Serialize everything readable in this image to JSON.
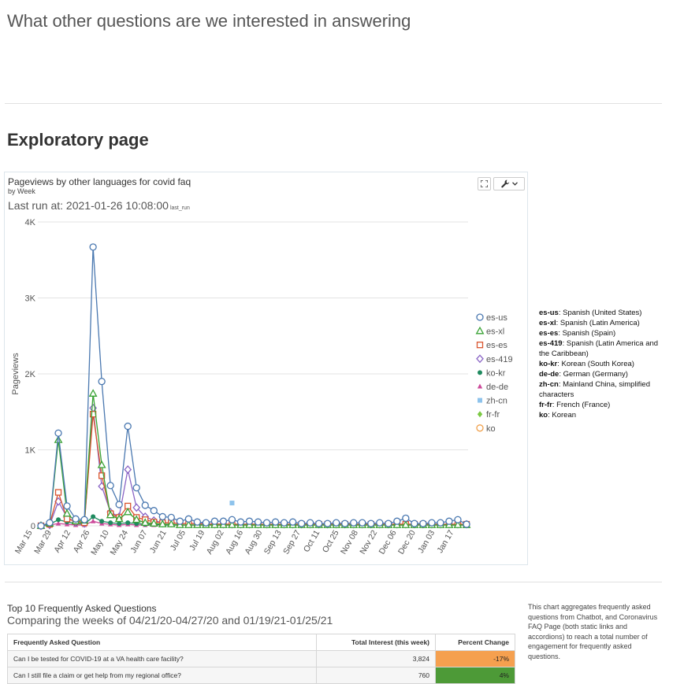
{
  "headings": {
    "questions": "What other questions are we interested in answering",
    "exploratory": "Exploratory page"
  },
  "chart_card": {
    "title": "Pageviews by other languages for covid faq",
    "subtitle": "by Week",
    "last_run_label": "Last run at: 2021-01-26 10:08:00",
    "last_run_tag": "last_run",
    "expand_icon": "expand-icon",
    "tools_icon": "wrench-icon"
  },
  "chart_data": {
    "type": "line",
    "ylabel": "Pageviews",
    "xlabel": "",
    "ylim": [
      0,
      4000
    ],
    "y_ticks": [
      0,
      1000,
      2000,
      3000,
      4000
    ],
    "y_tick_labels": [
      "0",
      "1K",
      "2K",
      "3K",
      "4K"
    ],
    "grid": true,
    "legend_position": "right",
    "x_tick_labels": [
      "Mar 15",
      "Mar 29",
      "Apr 12",
      "Apr 26",
      "May 10",
      "May 24",
      "Jun 07",
      "Jun 21",
      "Jul 05",
      "Jul 19",
      "Aug 02",
      "Aug 16",
      "Aug 30",
      "Sep 13",
      "Sep 27",
      "Oct 11",
      "Oct 25",
      "Nov 08",
      "Nov 22",
      "Dec 06",
      "Dec 20",
      "Jan 03",
      "Jan 17"
    ],
    "series": [
      {
        "name": "es-us",
        "color": "#4a78b0",
        "marker": "circle",
        "values": [
          0,
          40,
          1220,
          260,
          90,
          80,
          3670,
          1900,
          530,
          280,
          1310,
          500,
          270,
          200,
          120,
          110,
          60,
          90,
          50,
          40,
          60,
          60,
          80,
          50,
          60,
          50,
          40,
          50,
          40,
          50,
          30,
          40,
          30,
          30,
          40,
          30,
          40,
          40,
          30,
          40,
          30,
          60,
          100,
          30,
          30,
          40,
          40,
          60,
          80,
          20
        ]
      },
      {
        "name": "es-xl",
        "color": "#3aa335",
        "marker": "triangle",
        "values": [
          0,
          30,
          1130,
          160,
          60,
          70,
          1740,
          800,
          140,
          90,
          180,
          80,
          40,
          30,
          20,
          20,
          10,
          10,
          10,
          10,
          10,
          10,
          10,
          10,
          10,
          10,
          10,
          10,
          10,
          10,
          10,
          10,
          10,
          10,
          10,
          10,
          10,
          10,
          10,
          10,
          10,
          10,
          10,
          10,
          10,
          10,
          10,
          10,
          10,
          10
        ]
      },
      {
        "name": "es-es",
        "color": "#d9552f",
        "marker": "square",
        "values": [
          0,
          20,
          440,
          90,
          60,
          40,
          1470,
          660,
          160,
          110,
          260,
          110,
          80,
          50,
          40,
          40,
          30,
          30,
          30,
          20,
          20,
          20,
          20,
          20,
          20,
          20,
          20,
          20,
          20,
          20,
          20,
          20,
          20,
          20,
          20,
          20,
          20,
          20,
          20,
          20,
          20,
          20,
          20,
          20,
          20,
          20,
          20,
          20,
          20,
          20
        ]
      },
      {
        "name": "es-419",
        "color": "#8a65c5",
        "marker": "diamond",
        "values": [
          0,
          10,
          320,
          110,
          50,
          30,
          1550,
          520,
          180,
          120,
          740,
          240,
          120,
          70,
          40,
          40,
          30,
          30,
          30,
          30,
          20,
          20,
          20,
          20,
          20,
          20,
          20,
          20,
          20,
          20,
          20,
          20,
          20,
          20,
          20,
          20,
          20,
          20,
          20,
          20,
          20,
          20,
          20,
          20,
          20,
          20,
          20,
          20,
          20,
          20
        ]
      },
      {
        "name": "ko-kr",
        "color": "#1f8a5f",
        "marker": "dot",
        "values": [
          0,
          20,
          80,
          50,
          30,
          20,
          120,
          60,
          40,
          30,
          40,
          30,
          20,
          20,
          10,
          10,
          10,
          10,
          10,
          10,
          10,
          10,
          10,
          10,
          10,
          10,
          10,
          10,
          10,
          10,
          10,
          10,
          10,
          10,
          10,
          10,
          10,
          10,
          10,
          10,
          10,
          10,
          10,
          10,
          10,
          10,
          10,
          10,
          10,
          10
        ]
      },
      {
        "name": "de-de",
        "color": "#cc4a9a",
        "marker": "triangle-filled",
        "values": [
          0,
          10,
          30,
          20,
          10,
          10,
          60,
          30,
          20,
          10,
          20,
          10,
          10,
          10,
          10,
          10,
          10,
          10,
          10,
          10,
          10,
          10,
          10,
          10,
          10,
          10,
          10,
          10,
          10,
          10,
          10,
          10,
          10,
          10,
          10,
          10,
          10,
          10,
          10,
          10,
          10,
          10,
          10,
          10,
          10,
          10,
          10,
          10,
          10,
          10
        ]
      },
      {
        "name": "zh-cn",
        "color": "#8ec3ec",
        "marker": "square-filled",
        "values": [
          null,
          null,
          null,
          null,
          null,
          null,
          null,
          null,
          null,
          null,
          null,
          null,
          null,
          null,
          null,
          null,
          null,
          null,
          null,
          null,
          null,
          null,
          300,
          null,
          null,
          null,
          null,
          null,
          null,
          null,
          null,
          null,
          null,
          null,
          null,
          null,
          null,
          null,
          null,
          null,
          null,
          null,
          null,
          null,
          null,
          null,
          null,
          null,
          null,
          null
        ]
      },
      {
        "name": "fr-fr",
        "color": "#7bc943",
        "marker": "diamond-filled",
        "values": []
      },
      {
        "name": "ko",
        "color": "#f0a04b",
        "marker": "circle",
        "values": []
      }
    ]
  },
  "language_key": [
    {
      "code": "es-us",
      "desc": "Spanish (United States)"
    },
    {
      "code": "es-xl",
      "desc": "Spanish (Latin America)"
    },
    {
      "code": "es-es",
      "desc": "Spanish (Spain)"
    },
    {
      "code": "es-419",
      "desc": "Spanish (Latin America and the Caribbean)"
    },
    {
      "code": "ko-kr",
      "desc": "Korean (South Korea)"
    },
    {
      "code": "de-de",
      "desc": "German (Germany)"
    },
    {
      "code": "zh-cn",
      "desc": "Mainland China, simplified characters"
    },
    {
      "code": "fr-fr",
      "desc": "French (France)"
    },
    {
      "code": "ko",
      "desc": "Korean"
    }
  ],
  "faq": {
    "title": "Top 10 Frequently Asked Questions",
    "subtitle": "Comparing the weeks of 04/21/20-04/27/20 and 01/19/21-01/25/21",
    "note": "This chart aggregates frequently asked questions from Chatbot, and Coronavirus FAQ Page (both static links and accordions) to reach a total number of engagement for frequently asked questions.",
    "headers": [
      "Frequently Asked Question",
      "Total Interest (this week)",
      "Percent Change"
    ],
    "rows": [
      {
        "question": "Can I be tested for COVID-19 at a VA health care facility?",
        "interest": "3,824",
        "change": "-17%",
        "change_color": "#f5a04f"
      },
      {
        "question": "Can I still file a claim or get help from my regional office?",
        "interest": "760",
        "change": "4%",
        "change_color": "#4d9a37"
      }
    ]
  }
}
